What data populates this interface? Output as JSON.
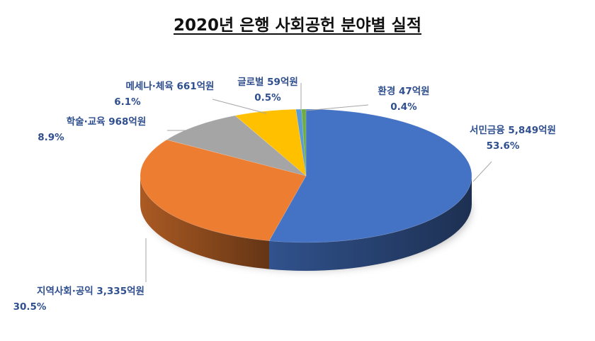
{
  "chart_data": {
    "type": "pie",
    "title": "2020년 은행 사회공헌 분야별 실적",
    "slices": [
      {
        "name": "서민금융",
        "amount_label": "5,849억원",
        "value": 5849,
        "percent": "53.6%",
        "color": "#4472c4"
      },
      {
        "name": "지역사회·공익",
        "amount_label": "3,335억원",
        "value": 3335,
        "percent": "30.5%",
        "color": "#ed7d31"
      },
      {
        "name": "학술·교육",
        "amount_label": "968억원",
        "value": 968,
        "percent": "8.9%",
        "color": "#a5a5a5"
      },
      {
        "name": "메세나·체육",
        "amount_label": "661억원",
        "value": 661,
        "percent": "6.1%",
        "color": "#ffc000"
      },
      {
        "name": "글로벌",
        "amount_label": "59억원",
        "value": 59,
        "percent": "0.5%",
        "color": "#5b9bd5"
      },
      {
        "name": "환경",
        "amount_label": "47억원",
        "value": 47,
        "percent": "0.4%",
        "color": "#70ad47"
      }
    ],
    "legend": "none"
  }
}
